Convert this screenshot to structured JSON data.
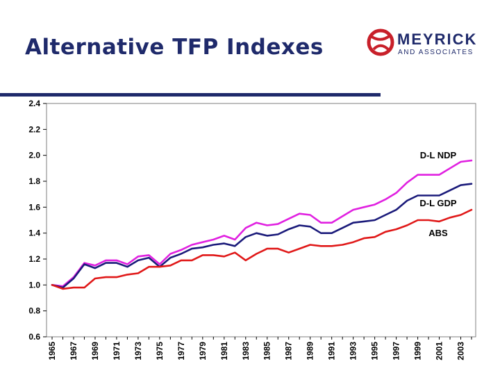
{
  "slide": {
    "title": "Alternative TFP Indexes"
  },
  "logo": {
    "name": "MEYRICK",
    "tagline": "AND ASSOCIATES",
    "icon": "globe-logo-icon",
    "color": "#c8202a"
  },
  "chart_data": {
    "type": "line",
    "title": "",
    "xlabel": "",
    "ylabel": "",
    "ylim": [
      0.6,
      2.4
    ],
    "yticks": [
      "0.6",
      "0.8",
      "1.0",
      "1.2",
      "1.4",
      "1.6",
      "1.8",
      "2.0",
      "2.2",
      "2.4"
    ],
    "xticks": [
      "1965",
      "1967",
      "1969",
      "1971",
      "1973",
      "1975",
      "1977",
      "1979",
      "1981",
      "1983",
      "1985",
      "1987",
      "1989",
      "1991",
      "1993",
      "1995",
      "1997",
      "1999",
      "2001",
      "2003"
    ],
    "x": [
      1965,
      1966,
      1967,
      1968,
      1969,
      1970,
      1971,
      1972,
      1973,
      1974,
      1975,
      1976,
      1977,
      1978,
      1979,
      1980,
      1981,
      1982,
      1983,
      1984,
      1985,
      1986,
      1987,
      1988,
      1989,
      1990,
      1991,
      1992,
      1993,
      1994,
      1995,
      1996,
      1997,
      1998,
      1999,
      2000,
      2001,
      2002,
      2003,
      2004
    ],
    "grid": false,
    "legend": "none",
    "series": [
      {
        "name": "D-L NDP",
        "color": "#e020e0",
        "values": [
          1.0,
          0.99,
          1.06,
          1.17,
          1.15,
          1.19,
          1.19,
          1.16,
          1.22,
          1.23,
          1.16,
          1.24,
          1.27,
          1.31,
          1.33,
          1.35,
          1.38,
          1.35,
          1.44,
          1.48,
          1.46,
          1.47,
          1.51,
          1.55,
          1.54,
          1.48,
          1.48,
          1.53,
          1.58,
          1.6,
          1.62,
          1.66,
          1.71,
          1.79,
          1.85,
          1.85,
          1.85,
          1.9,
          1.95,
          1.96
        ]
      },
      {
        "name": "D-L GDP",
        "color": "#1a1a7a",
        "values": [
          1.0,
          0.98,
          1.05,
          1.16,
          1.13,
          1.17,
          1.17,
          1.14,
          1.19,
          1.21,
          1.14,
          1.21,
          1.24,
          1.28,
          1.29,
          1.31,
          1.32,
          1.3,
          1.37,
          1.4,
          1.38,
          1.39,
          1.43,
          1.46,
          1.45,
          1.4,
          1.4,
          1.44,
          1.48,
          1.49,
          1.5,
          1.54,
          1.58,
          1.65,
          1.69,
          1.69,
          1.69,
          1.73,
          1.77,
          1.78
        ]
      },
      {
        "name": "ABS",
        "color": "#e01818",
        "values": [
          1.0,
          0.97,
          0.98,
          0.98,
          1.05,
          1.06,
          1.06,
          1.08,
          1.09,
          1.14,
          1.14,
          1.15,
          1.19,
          1.19,
          1.23,
          1.23,
          1.22,
          1.25,
          1.19,
          1.24,
          1.28,
          1.28,
          1.25,
          1.28,
          1.31,
          1.3,
          1.3,
          1.31,
          1.33,
          1.36,
          1.37,
          1.41,
          1.43,
          1.46,
          1.5,
          1.5,
          1.49,
          1.52,
          1.54,
          1.58
        ]
      }
    ]
  }
}
